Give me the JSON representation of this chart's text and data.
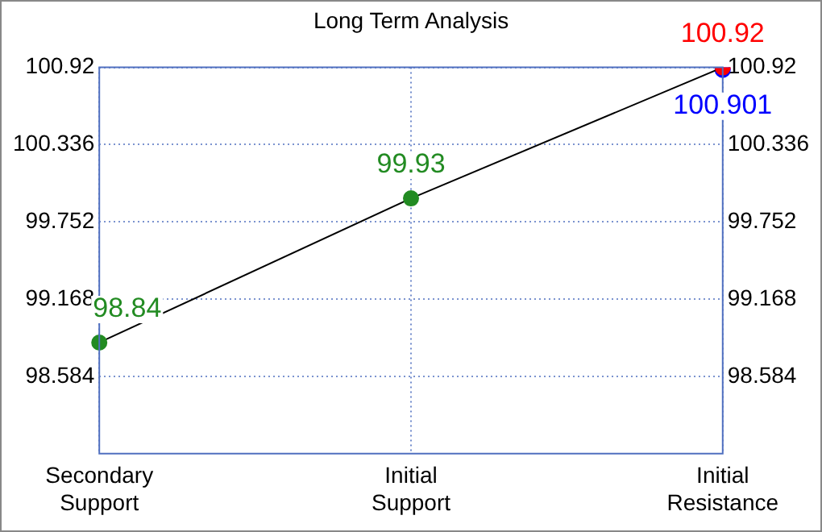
{
  "chart_data": {
    "type": "line",
    "title": "Long Term Analysis",
    "categories": [
      "Secondary\nSupport",
      "Initial\nSupport",
      "Initial\nResistance"
    ],
    "series": [
      {
        "color": "#000000",
        "colors": [
          "#228b22",
          "#228b22",
          "#ff0000"
        ],
        "values": [
          98.84,
          99.93,
          100.92
        ]
      },
      {
        "type": "scatter",
        "color": "#0000ff",
        "values": [
          null,
          null,
          100.901
        ]
      }
    ],
    "ylim": [
      98.0,
      100.92
    ],
    "yticks": [
      98.584,
      99.168,
      99.752,
      100.336,
      100.92
    ],
    "y2lim": [
      98.0,
      100.92
    ],
    "y2ticks": [
      98.584,
      99.168,
      99.752,
      100.336,
      100.92
    ],
    "grid": true,
    "marker": "circle",
    "data_labels": true
  }
}
